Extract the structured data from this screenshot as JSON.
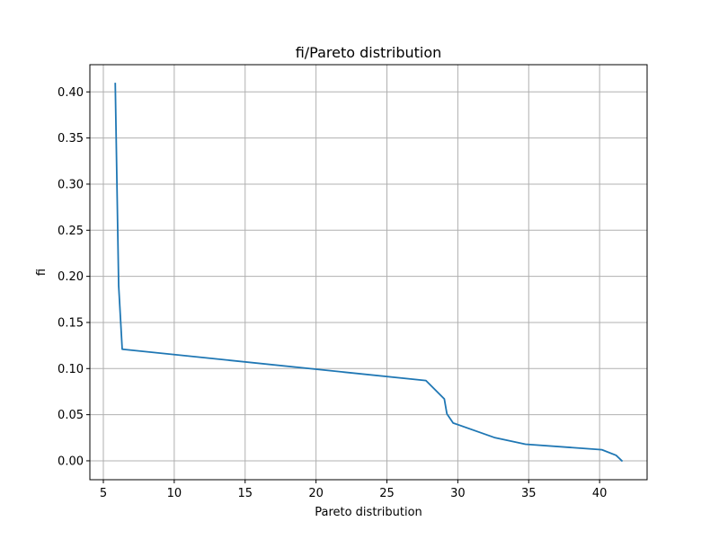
{
  "chart_data": {
    "type": "line",
    "title": "fi/Pareto distribution",
    "xlabel": "Pareto distribution",
    "ylabel": "fi",
    "xlim": [
      4.05,
      43.35
    ],
    "ylim": [
      -0.0205,
      0.4295
    ],
    "xticks": [
      5,
      10,
      15,
      20,
      25,
      30,
      35,
      40
    ],
    "xtick_labels": [
      "5",
      "10",
      "15",
      "20",
      "25",
      "30",
      "35",
      "40"
    ],
    "yticks": [
      0.0,
      0.05,
      0.1,
      0.15,
      0.2,
      0.25,
      0.3,
      0.35,
      0.4
    ],
    "ytick_labels": [
      "0.00",
      "0.05",
      "0.10",
      "0.15",
      "0.20",
      "0.25",
      "0.30",
      "0.35",
      "0.40"
    ],
    "grid": true,
    "series": [
      {
        "color": "#1f77b4",
        "x": [
          5.84,
          6.08,
          6.33,
          27.75,
          29.05,
          29.23,
          29.67,
          32.63,
          34.77,
          40.16,
          41.16,
          41.57
        ],
        "y": [
          0.409,
          0.19,
          0.121,
          0.087,
          0.067,
          0.051,
          0.041,
          0.025,
          0.018,
          0.012,
          0.006,
          0.0
        ]
      }
    ]
  }
}
